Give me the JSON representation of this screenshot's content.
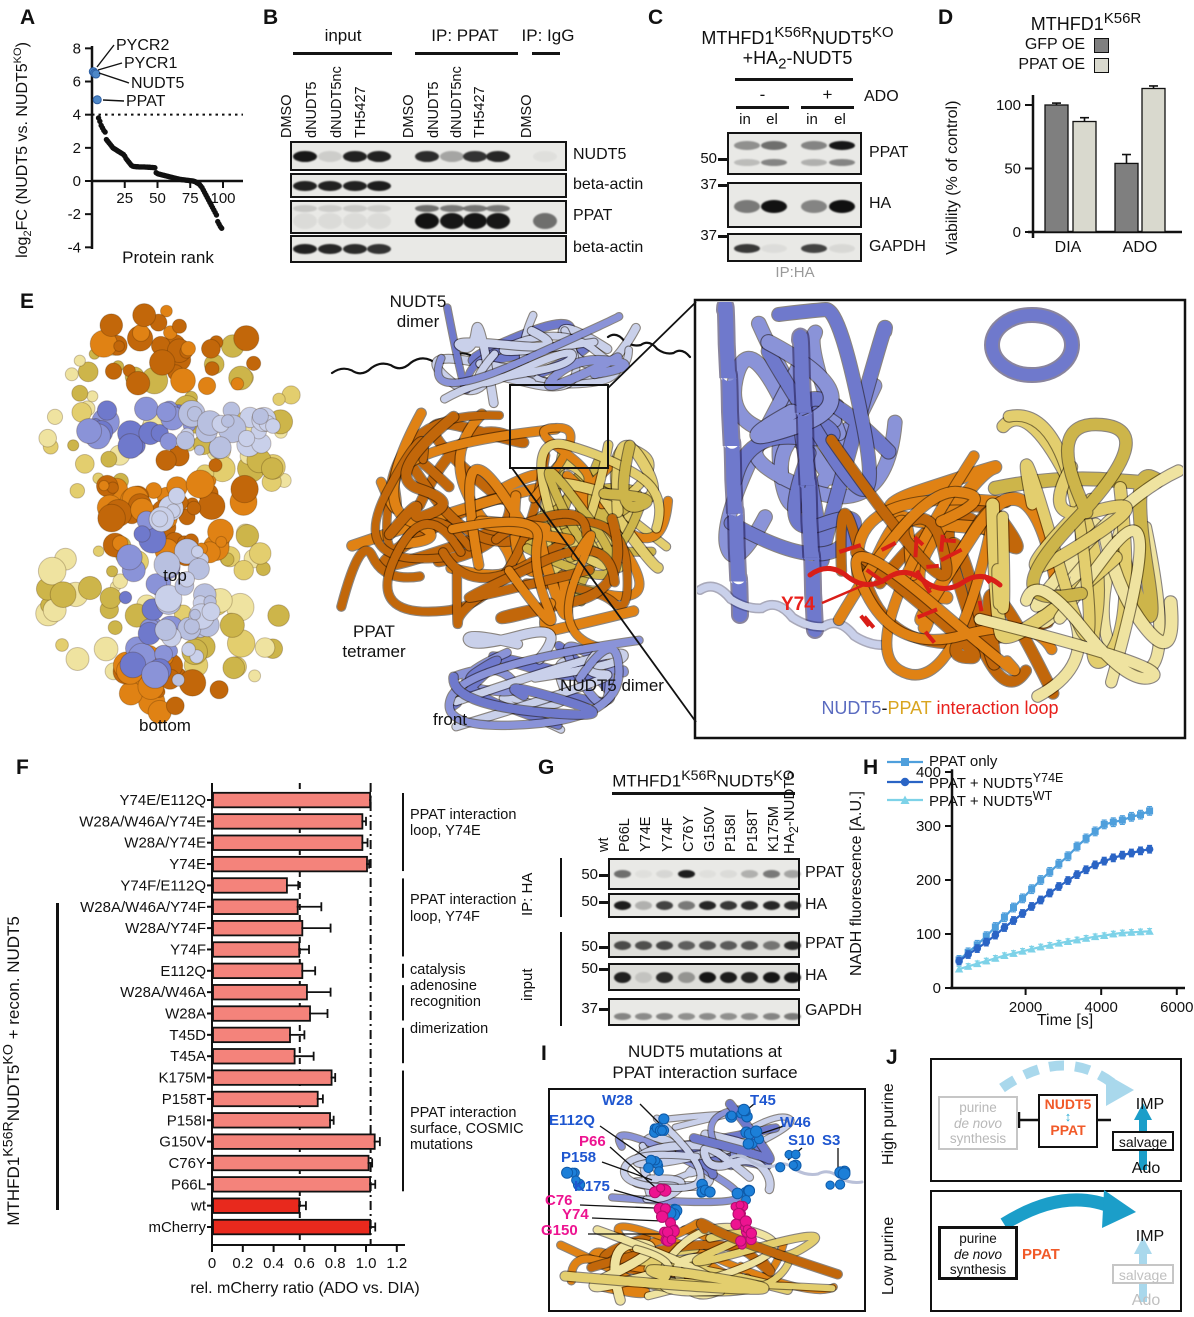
{
  "panels": {
    "A": {
      "letter": "A",
      "xlabel": "Protein rank",
      "ylabel_parts": [
        [
          "t",
          "log"
        ],
        [
          "sub",
          "2"
        ],
        [
          "t",
          "FC (NUDT5 vs. NUDT5"
        ],
        [
          "sup",
          "KO"
        ],
        [
          "t",
          ")"
        ]
      ]
    },
    "B": {
      "letter": "B",
      "group_labels": [
        "input",
        "IP: PPAT",
        "IP: IgG"
      ],
      "lane_labels": [
        "DMSO",
        "dNUDT5",
        "dNUDT5nc",
        "TH5427",
        "DMSO",
        "dNUDT5",
        "dNUDT5nc",
        "TH5427",
        "DMSO"
      ],
      "strips": [
        {
          "label": "NUDT5",
          "rows": [
            {
              "dy": 0,
              "h": 11,
              "bands": [
                0.95,
                0.12,
                0.9,
                0.9,
                0.85,
                0.3,
                0.82,
                0.88,
                0.04
              ]
            }
          ]
        },
        {
          "label": "beta-actin",
          "rows": [
            {
              "dy": 0,
              "h": 10,
              "bands": [
                0.9,
                0.9,
                0.9,
                0.92,
                0,
                0,
                0,
                0,
                0
              ]
            }
          ]
        },
        {
          "label": "PPAT",
          "rows": [
            {
              "dy": -9,
              "h": 7,
              "bands": [
                0.15,
                0.12,
                0.14,
                0.12,
                0.55,
                0.5,
                0.52,
                0.5,
                0
              ]
            },
            {
              "dy": 4,
              "h": 16,
              "bands": [
                0.06,
                0.06,
                0.06,
                0.06,
                0.97,
                0.95,
                0.96,
                0.95,
                0.55
              ]
            }
          ]
        },
        {
          "label": "beta-actin",
          "rows": [
            {
              "dy": 0,
              "h": 10,
              "bands": [
                0.9,
                0.88,
                0.86,
                0.82,
                0,
                0,
                0,
                0,
                0
              ]
            }
          ]
        }
      ]
    },
    "C": {
      "letter": "C",
      "title_html": "MTHFD1<sup>K56R</sup>NUDT5<sup>KO</sup>",
      "subtitle_html": "+HA<sub>2</sub>-NUDT5",
      "cond_minus": "-",
      "cond_plus": "+",
      "cond_label": "ADO",
      "lane_labels": [
        "in",
        "el",
        "in",
        "el"
      ],
      "footer": "IP:HA",
      "strips": [
        {
          "label": "PPAT",
          "mw": "50",
          "rows": [
            {
              "dy": -8,
              "h": 9,
              "bands": [
                0.4,
                0.55,
                0.45,
                0.95
              ]
            },
            {
              "dy": 9,
              "h": 7,
              "bands": [
                0.2,
                0.45,
                0.25,
                0.45
              ]
            }
          ]
        },
        {
          "label": "HA",
          "mw": "37",
          "rows": [
            {
              "dy": 1,
              "h": 13,
              "bands": [
                0.5,
                0.97,
                0.45,
                0.98
              ]
            }
          ]
        },
        {
          "label": "GAPDH",
          "mw": "37",
          "rows": [
            {
              "dy": 1,
              "h": 9,
              "bands": [
                0.8,
                0.05,
                0.75,
                0.07
              ]
            }
          ]
        }
      ]
    },
    "D": {
      "letter": "D",
      "title_html": "MTHFD1<sup>K56R</sup>"
    },
    "E": {
      "letter": "E",
      "caption_top": "top",
      "caption_bottom": "bottom",
      "caption_front": "front",
      "label_nudt5_top": "NUDT5 dimer",
      "label_ppat": "PPAT tetramer",
      "label_nudt5_bottom": "NUDT5 dimer",
      "zoom_residue": "Y74",
      "zoom_caption": [
        {
          "text": "NUDT5",
          "color": "#5A6BC0"
        },
        {
          "text": "-",
          "color": "#1a1a1a"
        },
        {
          "text": "PPAT",
          "color": "#D9A520"
        },
        {
          "text": " interaction loop",
          "color": "#E8201C"
        }
      ]
    },
    "F": {
      "letter": "F",
      "side_label_html": "MTHFD1<sup>K56R</sup>NUDT5<sup>KO</sup> + recon. NUDT5"
    },
    "G": {
      "letter": "G",
      "title_html": "MTHFD1<sup>K56R</sup>NUDT5<sup>KO</sup>",
      "construct_html": "HA<sub>2</sub>-NUDT5",
      "section_labels": [
        "IP: HA",
        "input"
      ],
      "lane_labels": [
        "wt",
        "P66L",
        "Y74E",
        "Y74F",
        "C76Y",
        "G150V",
        "P158I",
        "P158T",
        "K175M"
      ],
      "strips": [
        {
          "label": "PPAT",
          "mw": "50",
          "rows": [
            {
              "dy": 0,
              "h": 8,
              "bands": [
                0.55,
                0.04,
                0.08,
                0.92,
                0.04,
                0.06,
                0.25,
                0.5,
                0.3
              ]
            }
          ]
        },
        {
          "label": "HA",
          "mw": "50",
          "rows": [
            {
              "dy": 0,
              "h": 9,
              "bands": [
                0.92,
                0.25,
                0.75,
                0.5,
                0.88,
                0.8,
                0.85,
                0.88,
                0.85
              ]
            }
          ]
        },
        {
          "label": "PPAT",
          "mw": "50",
          "rows": [
            {
              "dy": 0,
              "h": 9,
              "bands": [
                0.7,
                0.68,
                0.72,
                0.6,
                0.66,
                0.62,
                0.66,
                0.5,
                0.85
              ]
            }
          ]
        },
        {
          "label": "HA",
          "mw": "50",
          "rows": [
            {
              "dy": 0,
              "h": 11,
              "bands": [
                0.9,
                0.12,
                0.85,
                0.35,
                0.95,
                0.92,
                0.88,
                0.95,
                0.93
              ]
            }
          ]
        },
        {
          "label": "GAPDH",
          "mw": "37",
          "rows": [
            {
              "dy": 4,
              "h": 7,
              "bands": [
                0.45,
                0.42,
                0.45,
                0.4,
                0.42,
                0.4,
                0.42,
                0.45,
                0.5
              ]
            }
          ]
        }
      ]
    },
    "H": {
      "letter": "H"
    },
    "I": {
      "letter": "I",
      "title_line1": "NUDT5 mutations at",
      "title_line2": "PPAT interaction surface",
      "blue_color": "#1E56D0",
      "magenta_color": "#ED1390",
      "residues": [
        {
          "label": "W28",
          "color": "blue"
        },
        {
          "label": "T45",
          "color": "blue"
        },
        {
          "label": "W46",
          "color": "blue"
        },
        {
          "label": "E112Q",
          "color": "blue"
        },
        {
          "label": "S10",
          "color": "blue"
        },
        {
          "label": "S3",
          "color": "blue"
        },
        {
          "label": "P66",
          "color": "magenta"
        },
        {
          "label": "P158",
          "color": "blue"
        },
        {
          "label": "K175",
          "color": "blue"
        },
        {
          "label": "C76",
          "color": "magenta"
        },
        {
          "label": "Y74",
          "color": "magenta"
        },
        {
          "label": "G150",
          "color": "magenta"
        }
      ]
    },
    "J": {
      "letter": "J",
      "accent": "#F15A29",
      "teal": "#1B9EC9",
      "light_blue": "#A9D8EC",
      "top": {
        "side": "High purine",
        "denovo1": "purine",
        "denovo2": "de novo",
        "denovo3": "synthesis",
        "nudt5": "NUDT5",
        "ppat": "PPAT",
        "imp": "IMP",
        "salvage": "salvage",
        "ado": "Ado"
      },
      "bottom": {
        "side": "Low purine",
        "denovo1": "purine",
        "denovo2": "de novo",
        "denovo3": "synthesis",
        "ppat": "PPAT",
        "imp": "IMP",
        "salvage": "salvage",
        "ado": "Ado"
      }
    }
  },
  "chart_data": [
    {
      "id": "A",
      "type": "scatter",
      "xlabel": "Protein rank",
      "ylabel": "log2FC (NUDT5 vs. NUDT5KO)",
      "xlim": [
        0,
        105
      ],
      "ylim": [
        -4,
        8
      ],
      "yticks": [
        -4,
        -2,
        0,
        2,
        4,
        6,
        8
      ],
      "xticks": [
        25,
        50,
        75,
        100
      ],
      "threshold_y": 4,
      "highlight_color": "#4D87C7",
      "highlighted": [
        {
          "label": "PYCR2",
          "x": 1,
          "y": 6.6
        },
        {
          "label": "PYCR1",
          "x": 2,
          "y": 6.5
        },
        {
          "label": "NUDT5",
          "x": 3,
          "y": 6.45
        },
        {
          "label": "PPAT",
          "x": 4,
          "y": 4.9
        }
      ],
      "rank_start": 5,
      "values": [
        3.8,
        3.6,
        3.35,
        3.2,
        3.05,
        2.95,
        2.5,
        2.4,
        2.3,
        2.2,
        2.1,
        2.0,
        1.95,
        1.9,
        1.85,
        1.8,
        1.75,
        1.7,
        1.65,
        1.6,
        1.5,
        1.35,
        1.25,
        1.15,
        1.05,
        0.95,
        0.9,
        0.88,
        0.87,
        0.86,
        0.86,
        0.85,
        0.85,
        0.85,
        0.85,
        0.85,
        0.84,
        0.84,
        0.83,
        0.83,
        0.82,
        0.82,
        0.81,
        0.8,
        0.5,
        0.45,
        0.42,
        0.4,
        0.38,
        0.36,
        0.34,
        0.32,
        0.3,
        0.28,
        0.26,
        0.24,
        0.22,
        0.2,
        0.18,
        0.16,
        0.14,
        0.12,
        0.1,
        0.09,
        0.08,
        0.07,
        0.06,
        0.05,
        0.04,
        0.03,
        0.02,
        0.01,
        0.0,
        -0.02,
        -0.05,
        -0.1,
        -0.15,
        -0.2,
        -0.3,
        -0.4,
        -0.55,
        -0.7,
        -0.85,
        -1.0,
        -1.15,
        -1.3,
        -1.45,
        -1.6,
        -1.75,
        -1.9,
        -2.05,
        -2.45,
        -2.6,
        -2.75,
        -2.85
      ]
    },
    {
      "id": "D",
      "type": "bar",
      "title": "MTHFD1K56R",
      "categories": [
        "DIA",
        "ADO"
      ],
      "series": [
        {
          "name": "GFP OE",
          "color": "#7F7F7F",
          "values": [
            100,
            54
          ],
          "errors": [
            1.5,
            7
          ]
        },
        {
          "name": "PPAT OE",
          "color": "#D9D9CE",
          "values": [
            87,
            113
          ],
          "errors": [
            3,
            2
          ]
        }
      ],
      "ylabel": "Viability (% of control)",
      "ylim": [
        0,
        120
      ],
      "yticks": [
        0,
        50,
        100
      ]
    },
    {
      "id": "F",
      "type": "bar-horizontal",
      "xlabel": "rel. mCherry ratio (ADO vs. DIA)",
      "xlim": [
        0,
        1.25
      ],
      "xticks": [
        0,
        0.2,
        0.4,
        0.6,
        0.8,
        1.0,
        1.2
      ],
      "bar_color": "#F4837B",
      "highlight_color": "#E8291D",
      "highlight_categories": [
        "wt",
        "mCherry"
      ],
      "dashed_line_x": 0.57,
      "dashdot_line_x": 1.03,
      "categories": [
        "Y74E/E112Q",
        "W28A/W46A/Y74E",
        "W28A/Y74E",
        "Y74E",
        "Y74F/E112Q",
        "W28A/W46A/Y74F",
        "W28A/Y74F",
        "Y74F",
        "E112Q",
        "W28A/W46A",
        "W28A",
        "T45D",
        "T45A",
        "K175M",
        "P158T",
        "P158I",
        "G150V",
        "C76Y",
        "P66L",
        "wt",
        "mCherry"
      ],
      "values": [
        1.02,
        0.97,
        0.97,
        1.0,
        0.48,
        0.55,
        0.58,
        0.56,
        0.58,
        0.61,
        0.63,
        0.5,
        0.53,
        0.77,
        0.68,
        0.76,
        1.05,
        1.01,
        1.02,
        0.56,
        1.02
      ],
      "errors": [
        0.01,
        0.03,
        0.04,
        0.02,
        0.08,
        0.16,
        0.19,
        0.07,
        0.09,
        0.16,
        0.12,
        0.1,
        0.13,
        0.03,
        0.04,
        0.03,
        0.04,
        0.03,
        0.04,
        0.05,
        0.04
      ],
      "group_annotations": [
        {
          "label": "PPAT interaction loop, Y74E",
          "from": 0,
          "to": 3
        },
        {
          "label": "PPAT interaction loop, Y74F",
          "from": 4,
          "to": 7
        },
        {
          "label": "catalysis",
          "from": 8,
          "to": 8
        },
        {
          "label": "adenosine recognition",
          "from": 9,
          "to": 10
        },
        {
          "label": "dimerization",
          "from": 11,
          "to": 12
        },
        {
          "label": "PPAT interaction surface, COSMIC mutations",
          "from": 13,
          "to": 18
        }
      ]
    },
    {
      "id": "H",
      "type": "line",
      "xlabel": "Time [s]",
      "ylabel": "NADH fluorescence [A.U.]",
      "xlim": [
        0,
        6200
      ],
      "ylim": [
        0,
        400
      ],
      "xticks": [
        2000,
        4000,
        6000
      ],
      "yticks": [
        0,
        100,
        200,
        300,
        400
      ],
      "x": [
        240,
        480,
        720,
        960,
        1200,
        1440,
        1680,
        1920,
        2160,
        2400,
        2640,
        2880,
        3120,
        3360,
        3600,
        3840,
        4080,
        4320,
        4560,
        4800,
        5040,
        5280
      ],
      "series": [
        {
          "name": "PPAT only",
          "name_html": "PPAT only",
          "color": "#4F9FDC",
          "marker": "square",
          "error": 8,
          "values": [
            52,
            66,
            80,
            96,
            113,
            131,
            149,
            166,
            183,
            200,
            215,
            230,
            244,
            262,
            277,
            290,
            303,
            307,
            311,
            317,
            321,
            328
          ]
        },
        {
          "name": "PPAT + NUDT5Y74E",
          "name_html": "PPAT + NUDT5<sup>Y74E</sup>",
          "color": "#2A64C5",
          "marker": "circle",
          "error": 7,
          "values": [
            50,
            62,
            73,
            85,
            98,
            112,
            125,
            138,
            151,
            163,
            176,
            188,
            199,
            210,
            219,
            228,
            235,
            241,
            246,
            250,
            254,
            257
          ]
        },
        {
          "name": "PPAT + NUDT5WT",
          "name_html": "PPAT + NUDT5<sup>WT</sup>",
          "color": "#7DD2E8",
          "marker": "triangle",
          "error": 5,
          "values": [
            35,
            40,
            45,
            50,
            55,
            60,
            64,
            68,
            72,
            76,
            79,
            83,
            86,
            89,
            92,
            95,
            97,
            100,
            102,
            103,
            104,
            105
          ]
        }
      ]
    }
  ]
}
